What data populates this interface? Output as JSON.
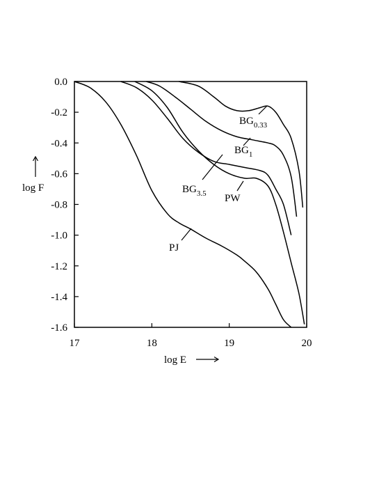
{
  "chart_data": {
    "type": "line",
    "xlabel": "log E",
    "ylabel": "log F",
    "xlim": [
      17,
      20
    ],
    "ylim": [
      -1.6,
      0.0
    ],
    "x_ticks": [
      17,
      18,
      19,
      20
    ],
    "x_tick_labels": [
      "17",
      "18",
      "19",
      "20"
    ],
    "y_ticks": [
      0.0,
      -0.2,
      -0.4,
      -0.6,
      -0.8,
      -1.0,
      -1.2,
      -1.4,
      -1.6
    ],
    "y_tick_labels": [
      "0.0",
      "-0.2",
      "-0.4",
      "-0.6",
      "-0.8",
      "-1.0",
      "-1.2",
      "-1.4",
      "-1.6"
    ],
    "grid": false,
    "series": [
      {
        "name": "BG0.33",
        "label_main": "BG",
        "label_sub": "0.33",
        "x": [
          18.35,
          18.6,
          18.8,
          18.95,
          19.1,
          19.25,
          19.4,
          19.5,
          19.6,
          19.7,
          19.8,
          19.9,
          19.95
        ],
        "y": [
          0.0,
          -0.03,
          -0.1,
          -0.16,
          -0.19,
          -0.19,
          -0.17,
          -0.16,
          -0.2,
          -0.28,
          -0.37,
          -0.58,
          -0.82
        ]
      },
      {
        "name": "BG1",
        "label_main": "BG",
        "label_sub": "1",
        "x": [
          17.93,
          18.1,
          18.3,
          18.5,
          18.7,
          18.9,
          19.1,
          19.3,
          19.5,
          19.6,
          19.7,
          19.8,
          19.87
        ],
        "y": [
          0.0,
          -0.03,
          -0.1,
          -0.18,
          -0.26,
          -0.32,
          -0.36,
          -0.38,
          -0.4,
          -0.42,
          -0.48,
          -0.62,
          -0.88
        ]
      },
      {
        "name": "BG3.5",
        "label_main": "BG",
        "label_sub": "3.5",
        "x": [
          17.6,
          17.8,
          18.0,
          18.2,
          18.4,
          18.6,
          18.8,
          19.0,
          19.2,
          19.4,
          19.5,
          19.6,
          19.7,
          19.8
        ],
        "y": [
          0.0,
          -0.04,
          -0.12,
          -0.24,
          -0.37,
          -0.46,
          -0.52,
          -0.54,
          -0.56,
          -0.58,
          -0.61,
          -0.7,
          -0.8,
          -1.0
        ]
      },
      {
        "name": "PW",
        "label_main": "PW",
        "label_sub": "",
        "x": [
          17.78,
          18.0,
          18.2,
          18.4,
          18.6,
          18.8,
          19.0,
          19.2,
          19.35,
          19.5,
          19.6,
          19.7,
          19.8,
          19.9,
          19.97
        ],
        "y": [
          0.0,
          -0.06,
          -0.17,
          -0.33,
          -0.45,
          -0.54,
          -0.6,
          -0.63,
          -0.63,
          -0.68,
          -0.8,
          -0.98,
          -1.18,
          -1.38,
          -1.58
        ]
      },
      {
        "name": "PJ",
        "label_main": "PJ",
        "label_sub": "",
        "x": [
          17.0,
          17.2,
          17.4,
          17.6,
          17.8,
          18.0,
          18.2,
          18.35,
          18.5,
          18.7,
          18.9,
          19.1,
          19.2,
          19.35,
          19.5,
          19.6,
          19.7,
          19.8
        ],
        "y": [
          0.0,
          -0.04,
          -0.13,
          -0.28,
          -0.48,
          -0.71,
          -0.86,
          -0.92,
          -0.96,
          -1.02,
          -1.07,
          -1.13,
          -1.17,
          -1.24,
          -1.35,
          -1.45,
          -1.55,
          -1.6
        ]
      }
    ]
  }
}
